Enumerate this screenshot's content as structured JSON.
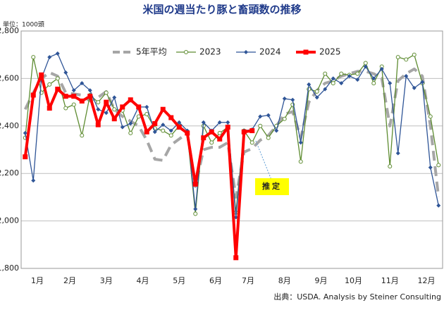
{
  "chart_data": {
    "type": "line",
    "title": "米国の週当たり豚と畜頭数の推移",
    "unit_label": "単位：1000頭",
    "source": "出典：USDA.  Analysis by Steiner Consulting",
    "annotation": "推定",
    "x": [
      1,
      2,
      3,
      4,
      5,
      6,
      7,
      8,
      9,
      10,
      11,
      12,
      13,
      14,
      15,
      16,
      17,
      18,
      19,
      20,
      21,
      22,
      23,
      24,
      25,
      26,
      27,
      28,
      29,
      30,
      31,
      32,
      33,
      34,
      35,
      36,
      37,
      38,
      39,
      40,
      41,
      42,
      43,
      44,
      45,
      46,
      47,
      48,
      49,
      50,
      51,
      52
    ],
    "xlim": [
      0.5,
      52.5
    ],
    "xticks": [
      {
        "value": 2.5,
        "label": "1月"
      },
      {
        "value": 6.5,
        "label": "2月"
      },
      {
        "value": 11,
        "label": "3月"
      },
      {
        "value": 15.5,
        "label": "4月"
      },
      {
        "value": 20,
        "label": "5月"
      },
      {
        "value": 24.5,
        "label": "6月"
      },
      {
        "value": 28.5,
        "label": "7月"
      },
      {
        "value": 33,
        "label": "8月"
      },
      {
        "value": 37.5,
        "label": "9月"
      },
      {
        "value": 41.5,
        "label": "10月"
      },
      {
        "value": 46,
        "label": "11月"
      },
      {
        "value": 50.5,
        "label": "12月"
      }
    ],
    "ylim": [
      1800,
      2800
    ],
    "yticks": [
      {
        "value": 1800,
        "label": "1,800"
      },
      {
        "value": 2000,
        "label": "2,000"
      },
      {
        "value": 2200,
        "label": "2,200"
      },
      {
        "value": 2400,
        "label": "2,400"
      },
      {
        "value": 2600,
        "label": "2,600"
      },
      {
        "value": 2800,
        "label": "2,800"
      }
    ],
    "grid": true,
    "legend": "top",
    "series": [
      {
        "name": "5年平均",
        "color": "#a6a6a6",
        "marker": "none",
        "dashed": true,
        "values": [
          2470,
          2540,
          2600,
          2625,
          2610,
          2540,
          2535,
          2530,
          2505,
          2520,
          2545,
          2470,
          2440,
          2420,
          2400,
          2340,
          2260,
          2255,
          2320,
          2345,
          2370,
          2145,
          2300,
          2310,
          2310,
          2330,
          2100,
          2290,
          2305,
          2340,
          2360,
          2400,
          2450,
          2460,
          2350,
          2500,
          2550,
          2580,
          2590,
          2610,
          2620,
          2630,
          2630,
          2620,
          2600,
          2400,
          2590,
          2620,
          2640,
          2610,
          2400,
          2100
        ]
      },
      {
        "name": "2023",
        "color": "#5e8c31",
        "marker": "circle",
        "values": [
          2350,
          2690,
          2540,
          2575,
          2600,
          2475,
          2490,
          2360,
          2530,
          2500,
          2540,
          2470,
          2465,
          2370,
          2440,
          2450,
          2390,
          2380,
          2360,
          2400,
          2370,
          2030,
          2400,
          2330,
          2370,
          2395,
          2035,
          2380,
          2330,
          2400,
          2350,
          2400,
          2430,
          2490,
          2250,
          2555,
          2545,
          2620,
          2580,
          2620,
          2615,
          2620,
          2665,
          2580,
          2650,
          2230,
          2690,
          2680,
          2700,
          2580,
          2440,
          2235
        ]
      },
      {
        "name": "2024",
        "color": "#2f5597",
        "marker": "diamond",
        "values": [
          2370,
          2170,
          2600,
          2690,
          2705,
          2625,
          2550,
          2580,
          2550,
          2470,
          2455,
          2520,
          2395,
          2410,
          2480,
          2480,
          2375,
          2405,
          2380,
          2415,
          2380,
          2050,
          2415,
          2380,
          2415,
          2415,
          2015,
          2380,
          2385,
          2440,
          2445,
          2380,
          2515,
          2510,
          2330,
          2575,
          2520,
          2555,
          2600,
          2580,
          2610,
          2595,
          2650,
          2600,
          2640,
          2580,
          2285,
          2610,
          2560,
          2585,
          2225,
          2065
        ]
      },
      {
        "name": "2025",
        "color": "#ff0000",
        "marker": "square",
        "width": 4,
        "values": [
          2270,
          2530,
          2615,
          2475,
          2555,
          2525,
          2525,
          2505,
          2525,
          2405,
          2500,
          2430,
          2480,
          2510,
          2480,
          2375,
          2410,
          2470,
          2435,
          2395,
          2370,
          2155,
          2350,
          2375,
          2345,
          2395,
          1845,
          2375,
          2380,
          null,
          null,
          null,
          null,
          null,
          null,
          null,
          null,
          null,
          null,
          null,
          null,
          null,
          null,
          null,
          null,
          null,
          null,
          null,
          null,
          null,
          null,
          null
        ]
      }
    ]
  }
}
